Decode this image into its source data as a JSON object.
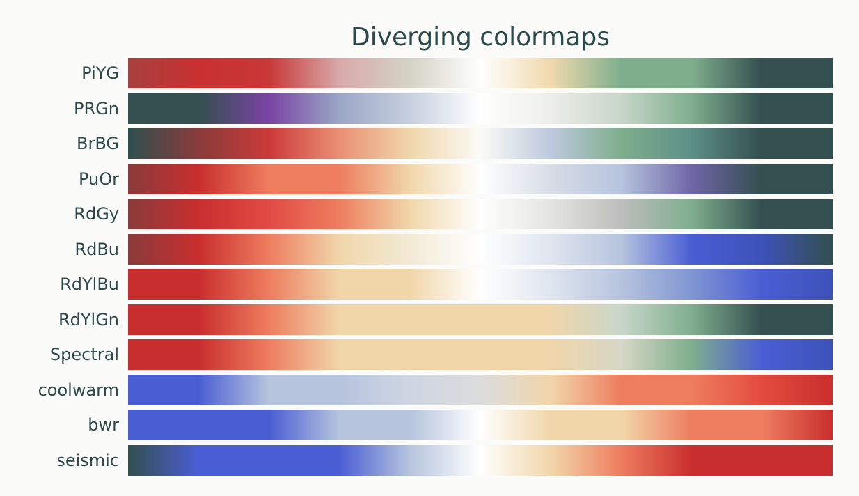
{
  "chart_data": {
    "type": "heatmap",
    "title": "Diverging colormaps",
    "xlabel": "",
    "ylabel": "",
    "grid": false,
    "colormaps": [
      {
        "name": "PiYG",
        "colors": [
          "#a84040",
          "#c93030",
          "#c83838",
          "#d9a9a9",
          "#d4d3c6",
          "#ffffff",
          "#f1d9ad",
          "#7fae8d",
          "#7fae8d",
          "#334f4f",
          "#334f4f"
        ]
      },
      {
        "name": "PRGn",
        "colors": [
          "#334f4f",
          "#334f4f",
          "#7a44a4",
          "#9aa6c6",
          "#c7d0df",
          "#ffffff",
          "#ededea",
          "#c8d6c9",
          "#7fae8d",
          "#334f4f",
          "#334f4f"
        ]
      },
      {
        "name": "BrBG",
        "colors": [
          "#2f4f4f",
          "#8a3b3b",
          "#cc3a3a",
          "#ea8f75",
          "#f1d6aa",
          "#fbfbf7",
          "#bdc9de",
          "#7fae8d",
          "#5d8f86",
          "#334f4f",
          "#334f4f"
        ]
      },
      {
        "name": "PuOr",
        "colors": [
          "#8a3b3b",
          "#c92e2e",
          "#ee7d5f",
          "#ee7d5f",
          "#f1d6aa",
          "#ffffff",
          "#d7dce6",
          "#b6c4de",
          "#6f66a8",
          "#334f4f",
          "#334f4f"
        ]
      },
      {
        "name": "RdGy",
        "colors": [
          "#8a3b3b",
          "#c92e2e",
          "#e24b44",
          "#ee7d5f",
          "#f1d6aa",
          "#ffffff",
          "#e4e4e2",
          "#bdbdbd",
          "#7fae8d",
          "#334f4f",
          "#334f4f"
        ]
      },
      {
        "name": "RdBu",
        "colors": [
          "#8a3b3b",
          "#c92e2e",
          "#ee7d5f",
          "#f1d6aa",
          "#f3ead6",
          "#ffffff",
          "#dfe5ef",
          "#b6c4de",
          "#4a5ed4",
          "#3d52b8",
          "#334f4f"
        ]
      },
      {
        "name": "RdYlBu",
        "colors": [
          "#c92e2e",
          "#c92e2e",
          "#ee7d5f",
          "#f1d6aa",
          "#f1d6aa",
          "#ffffff",
          "#dfe5ef",
          "#b6c4de",
          "#7f96d2",
          "#4a5ed4",
          "#3d52b8"
        ]
      },
      {
        "name": "RdYlGn",
        "colors": [
          "#c92e2e",
          "#c92e2e",
          "#ee7d5f",
          "#f1d6aa",
          "#f1d6aa",
          "#f1d6aa",
          "#f1d6aa",
          "#c8d6c9",
          "#7fae8d",
          "#334f4f",
          "#334f4f"
        ]
      },
      {
        "name": "Spectral",
        "colors": [
          "#c92e2e",
          "#c92e2e",
          "#ee7d5f",
          "#f1d6aa",
          "#f1d6aa",
          "#f1d6aa",
          "#f1d6aa",
          "#d7d7c6",
          "#7fae8d",
          "#4a5ed4",
          "#3d52b8"
        ]
      },
      {
        "name": "coolwarm",
        "colors": [
          "#4a5ed4",
          "#4a5ed4",
          "#b6c4de",
          "#b6c4de",
          "#cfd6e2",
          "#dcdcdc",
          "#f1d6aa",
          "#ee7d5f",
          "#ee7d5f",
          "#e34b3e",
          "#c92e2e"
        ]
      },
      {
        "name": "bwr",
        "colors": [
          "#4a5ed4",
          "#4a5ed4",
          "#4a5ed4",
          "#b6c4de",
          "#b6c4de",
          "#ffffff",
          "#f1d6aa",
          "#f1d6aa",
          "#ee7d5f",
          "#ee7d5f",
          "#c92e2e"
        ]
      },
      {
        "name": "seismic",
        "colors": [
          "#334f4f",
          "#4a5ed4",
          "#4a5ed4",
          "#4a5ed4",
          "#b6c4de",
          "#ffffff",
          "#f1d6aa",
          "#ee7d5f",
          "#c92e2e",
          "#c92e2e",
          "#c92e2e"
        ]
      }
    ]
  }
}
